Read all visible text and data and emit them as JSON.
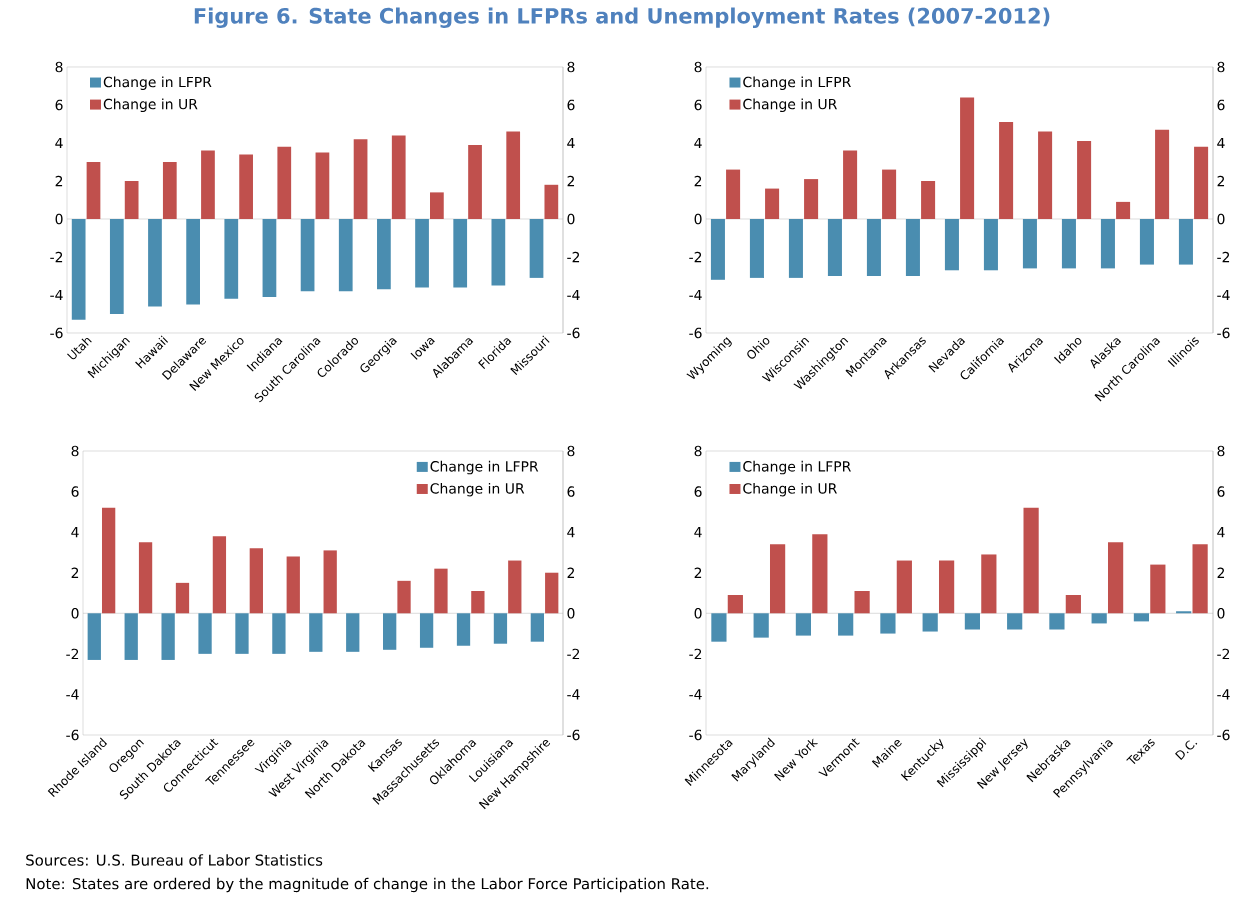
{
  "chart_data": [
    {
      "type": "bar",
      "title": "Figure 6. State Changes in LFPRs and Unemployment Rates (2007-2012)",
      "categories": [
        "Utah",
        "Michigan",
        "Hawaii",
        "Delaware",
        "New Mexico",
        "Indiana",
        "South Carolina",
        "Colorado",
        "Georgia",
        "Iowa",
        "Alabama",
        "Florida",
        "Missouri"
      ],
      "series": [
        {
          "name": "Change in LFPR",
          "color": "#4a8db0",
          "values": [
            -5.3,
            -5.0,
            -4.6,
            -4.5,
            -4.2,
            -4.1,
            -3.8,
            -3.8,
            -3.7,
            -3.6,
            -3.6,
            -3.5,
            -3.1
          ]
        },
        {
          "name": "Change in UR",
          "color": "#c0504d",
          "values": [
            3.0,
            2.0,
            3.0,
            3.6,
            3.4,
            3.8,
            3.5,
            4.2,
            4.4,
            1.4,
            3.9,
            4.6,
            1.8
          ]
        }
      ],
      "ylim": [
        -6,
        8
      ],
      "yticks": [
        -6,
        -4,
        -2,
        0,
        2,
        4,
        6,
        8
      ],
      "y2lim": [
        -6,
        8
      ],
      "y2ticks": [
        -6,
        -4,
        -2,
        0,
        2,
        4,
        6,
        8
      ],
      "legend": "top left"
    },
    {
      "type": "bar",
      "categories": [
        "Wyoming",
        "Ohio",
        "Wisconsin",
        "Washington",
        "Montana",
        "Arkansas",
        "Nevada",
        "California",
        "Arizona",
        "Idaho",
        "Alaska",
        "North Carolina",
        "Illinois"
      ],
      "series": [
        {
          "name": "Change in LFPR",
          "color": "#4a8db0",
          "values": [
            -3.2,
            -3.1,
            -3.1,
            -3.0,
            -3.0,
            -3.0,
            -2.7,
            -2.7,
            -2.6,
            -2.6,
            -2.6,
            -2.4,
            -2.4
          ]
        },
        {
          "name": "Change in UR",
          "color": "#c0504d",
          "values": [
            2.6,
            1.6,
            2.1,
            3.6,
            2.6,
            2.0,
            6.4,
            5.1,
            4.6,
            4.1,
            0.9,
            4.7,
            3.8
          ]
        }
      ],
      "ylim": [
        -6,
        8
      ],
      "yticks": [
        -6,
        -4,
        -2,
        0,
        2,
        4,
        6,
        8
      ],
      "y2lim": [
        -6,
        8
      ],
      "y2ticks": [
        -6,
        -4,
        -2,
        0,
        2,
        4,
        6,
        8
      ],
      "legend": "top left"
    },
    {
      "type": "bar",
      "categories": [
        "Rhode Island",
        "Oregon",
        "South Dakota",
        "Connecticut",
        "Tennessee",
        "Virginia",
        "West Virginia",
        "North Dakota",
        "Kansas",
        "Massachusetts",
        "Oklahoma",
        "Louisiana",
        "New Hampshire"
      ],
      "series": [
        {
          "name": "Change in LFPR",
          "color": "#4a8db0",
          "values": [
            -2.3,
            -2.3,
            -2.3,
            -2.0,
            -2.0,
            -2.0,
            -1.9,
            -1.9,
            -1.8,
            -1.7,
            -1.6,
            -1.5,
            -1.4
          ]
        },
        {
          "name": "Change in UR",
          "color": "#c0504d",
          "values": [
            5.2,
            3.5,
            1.5,
            3.8,
            3.2,
            2.8,
            3.1,
            0.0,
            1.6,
            2.2,
            1.1,
            2.6,
            2.0
          ]
        }
      ],
      "ylim": [
        -6,
        8
      ],
      "yticks": [
        -6,
        -4,
        -2,
        0,
        2,
        4,
        6,
        8
      ],
      "y2lim": [
        -6,
        8
      ],
      "y2ticks": [
        -6,
        -4,
        -2,
        0,
        2,
        4,
        6,
        8
      ],
      "legend": "top right"
    },
    {
      "type": "bar",
      "categories": [
        "Minnesota",
        "Maryland",
        "New York",
        "Vermont",
        "Maine",
        "Kentucky",
        "Mississippi",
        "New Jersey",
        "Nebraska",
        "Pennsylvania",
        "Texas",
        "D.C."
      ],
      "series": [
        {
          "name": "Change in LFPR",
          "color": "#4a8db0",
          "values": [
            -1.4,
            -1.2,
            -1.1,
            -1.1,
            -1.0,
            -0.9,
            -0.8,
            -0.8,
            -0.8,
            -0.5,
            -0.4,
            0.1
          ]
        },
        {
          "name": "Change in UR",
          "color": "#c0504d",
          "values": [
            0.9,
            3.4,
            3.9,
            1.1,
            2.6,
            2.6,
            2.9,
            5.2,
            0.9,
            3.5,
            2.4,
            3.4
          ]
        }
      ],
      "ylim": [
        -6,
        8
      ],
      "yticks": [
        -6,
        -4,
        -2,
        0,
        2,
        4,
        6,
        8
      ],
      "y2lim": [
        -6,
        8
      ],
      "y2ticks": [
        -6,
        -4,
        -2,
        0,
        2,
        4,
        6,
        8
      ],
      "legend": "top left",
      "annotations": [
        "Sources: U.S. Bureau of Labor Statistics",
        "Note:  States are ordered by the magnitude of change in the Labor Force Participation Rate."
      ]
    }
  ]
}
